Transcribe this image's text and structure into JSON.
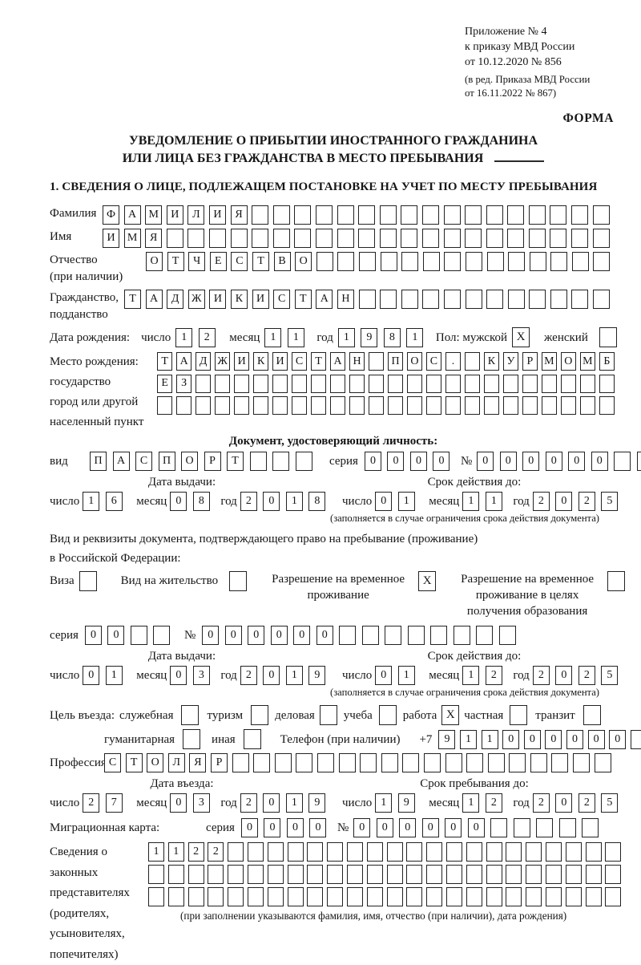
{
  "marks": {
    "check": "X"
  },
  "header": {
    "appendix_lines": [
      "Приложение № 4",
      "к приказу МВД России",
      "от 10.12.2020 № 856"
    ],
    "edition_lines": [
      "(в ред. Приказа МВД России",
      "от 16.11.2022 № 867)"
    ],
    "form_label": "ФОРМА"
  },
  "title": {
    "line1": "УВЕДОМЛЕНИЕ О ПРИБЫТИИ ИНОСТРАННОГО ГРАЖДАНИНА",
    "line2": "ИЛИ ЛИЦА БЕЗ ГРАЖДАНСТВА В МЕСТО ПРЕБЫВАНИЯ"
  },
  "section1": {
    "heading": "1. СВЕДЕНИЯ О ЛИЦЕ, ПОДЛЕЖАЩЕМ ПОСТАНОВКЕ НА УЧЕТ ПО МЕСТУ ПРЕБЫВАНИЯ"
  },
  "person": {
    "surname": {
      "label": "Фамилия",
      "cells": {
        "len": 24,
        "val": "ФАМИЛИЯ"
      }
    },
    "given_name": {
      "label": "Имя",
      "cells": {
        "len": 24,
        "val": "ИМЯ"
      }
    },
    "patronymic": {
      "label1": "Отчество",
      "label2": "(при наличии)",
      "cells": {
        "len": 22,
        "val": "ОТЧЕСТВО"
      }
    },
    "citizenship": {
      "label1": "Гражданство,",
      "label2": "подданство",
      "cells": {
        "len": 23,
        "val": "ТАДЖИКИСТАН"
      }
    },
    "birth_date": {
      "label": "Дата рождения:",
      "day_label": "число",
      "day": {
        "len": 2,
        "val": "12"
      },
      "month_label": "месяц",
      "month": {
        "len": 2,
        "val": "11"
      },
      "year_label": "год",
      "year": {
        "len": 4,
        "val": "1981"
      },
      "sex_label": "Пол: мужской",
      "male_checked": true,
      "female_label": "женский",
      "female_checked": false
    },
    "birth_place": {
      "label1": "Место рождения:",
      "label2": "государство",
      "label3": "город или другой",
      "label4": "населенный пункт",
      "row1": {
        "len": 24,
        "val": "ТАДЖИКИСТАН ПОС. КУРМОМБ"
      },
      "row2": {
        "len": 24,
        "val": "ЕЗ"
      },
      "row3": {
        "len": 24,
        "val": ""
      }
    }
  },
  "identity_doc": {
    "heading": "Документ, удостоверяющий личность:",
    "kind_label": "вид",
    "kind": {
      "len": 10,
      "val": "ПАСПОРТ"
    },
    "series_label": "серия",
    "series": {
      "len": 4,
      "val": "0000"
    },
    "number_label": "№",
    "number": {
      "len": 12,
      "val": "000000"
    },
    "issue_heading": "Дата выдачи:",
    "issue": {
      "day_label": "число",
      "day": {
        "len": 2,
        "val": "16"
      },
      "month_label": "месяц",
      "month": {
        "len": 2,
        "val": "08"
      },
      "year_label": "год",
      "year": {
        "len": 4,
        "val": "2018"
      }
    },
    "expiry_heading": "Срок действия до:",
    "expiry": {
      "day_label": "число",
      "day": {
        "len": 2,
        "val": "01"
      },
      "month_label": "месяц",
      "month": {
        "len": 2,
        "val": "11"
      },
      "year_label": "год",
      "year": {
        "len": 4,
        "val": "2025"
      }
    },
    "note": "(заполняется в случае ограничения срока действия документа)"
  },
  "residence_doc": {
    "intro_line1": "Вид и реквизиты документа, подтверждающего право на пребывание (проживание)",
    "intro_line2": "в Российской Федерации:",
    "options": [
      {
        "label": "Виза",
        "checked": false
      },
      {
        "label": "Вид на жительство",
        "checked": false
      },
      {
        "label": "Разрешение на временное проживание",
        "checked": true
      },
      {
        "label": "Разрешение на временное проживание в целях получения образования",
        "checked": false
      }
    ],
    "series_label": "серия",
    "series": {
      "len": 4,
      "val": "00"
    },
    "number_label": "№",
    "number": {
      "len": 14,
      "val": "000000"
    },
    "issue_heading": "Дата выдачи:",
    "issue": {
      "day_label": "число",
      "day": {
        "len": 2,
        "val": "01"
      },
      "month_label": "месяц",
      "month": {
        "len": 2,
        "val": "03"
      },
      "year_label": "год",
      "year": {
        "len": 4,
        "val": "2019"
      }
    },
    "expiry_heading": "Срок действия до:",
    "expiry": {
      "day_label": "число",
      "day": {
        "len": 2,
        "val": "01"
      },
      "month_label": "месяц",
      "month": {
        "len": 2,
        "val": "12"
      },
      "year_label": "год",
      "year": {
        "len": 4,
        "val": "2025"
      }
    },
    "note": "(заполняется в случае ограничения срока действия документа)"
  },
  "visit": {
    "purpose_label": "Цель въезда:",
    "options_row1": [
      {
        "label": "служебная",
        "checked": false
      },
      {
        "label": "туризм",
        "checked": false
      },
      {
        "label": "деловая",
        "checked": false
      },
      {
        "label": "учеба",
        "checked": false
      },
      {
        "label": "работа",
        "checked": true
      },
      {
        "label": "частная",
        "checked": false
      },
      {
        "label": "транзит",
        "checked": false
      }
    ],
    "options_row2": [
      {
        "label": "гуманитарная",
        "checked": false
      },
      {
        "label": "иная",
        "checked": false
      }
    ],
    "phone_label": "Телефон (при наличии)",
    "phone_prefix": "+7",
    "phone": {
      "len": 10,
      "val": "911000000"
    },
    "profession_label": "Профессия",
    "profession": {
      "len": 24,
      "val": "СТОЛЯР"
    },
    "entry_heading": "Дата въезда:",
    "entry": {
      "day_label": "число",
      "day": {
        "len": 2,
        "val": "27"
      },
      "month_label": "месяц",
      "month": {
        "len": 2,
        "val": "03"
      },
      "year_label": "год",
      "year": {
        "len": 4,
        "val": "2019"
      }
    },
    "stay_heading": "Срок пребывания до:",
    "stay": {
      "day_label": "число",
      "day": {
        "len": 2,
        "val": "19"
      },
      "month_label": "месяц",
      "month": {
        "len": 2,
        "val": "12"
      },
      "year_label": "год",
      "year": {
        "len": 4,
        "val": "2025"
      }
    }
  },
  "migration_card": {
    "label": "Миграционная карта:",
    "series_label": "серия",
    "series": {
      "len": 4,
      "val": "0000"
    },
    "number_label": "№",
    "number": {
      "len": 11,
      "val": "000000"
    }
  },
  "representatives": {
    "label_lines": [
      "Сведения о",
      "законных",
      "представителях",
      "(родителях,",
      "усыновителях,",
      "попечителях)"
    ],
    "row1": {
      "len": 24,
      "val": "1122"
    },
    "row2": {
      "len": 24,
      "val": ""
    },
    "row3": {
      "len": 24,
      "val": ""
    },
    "note": "(при заполнении указываются фамилия, имя, отчество (при наличии), дата рождения)"
  }
}
